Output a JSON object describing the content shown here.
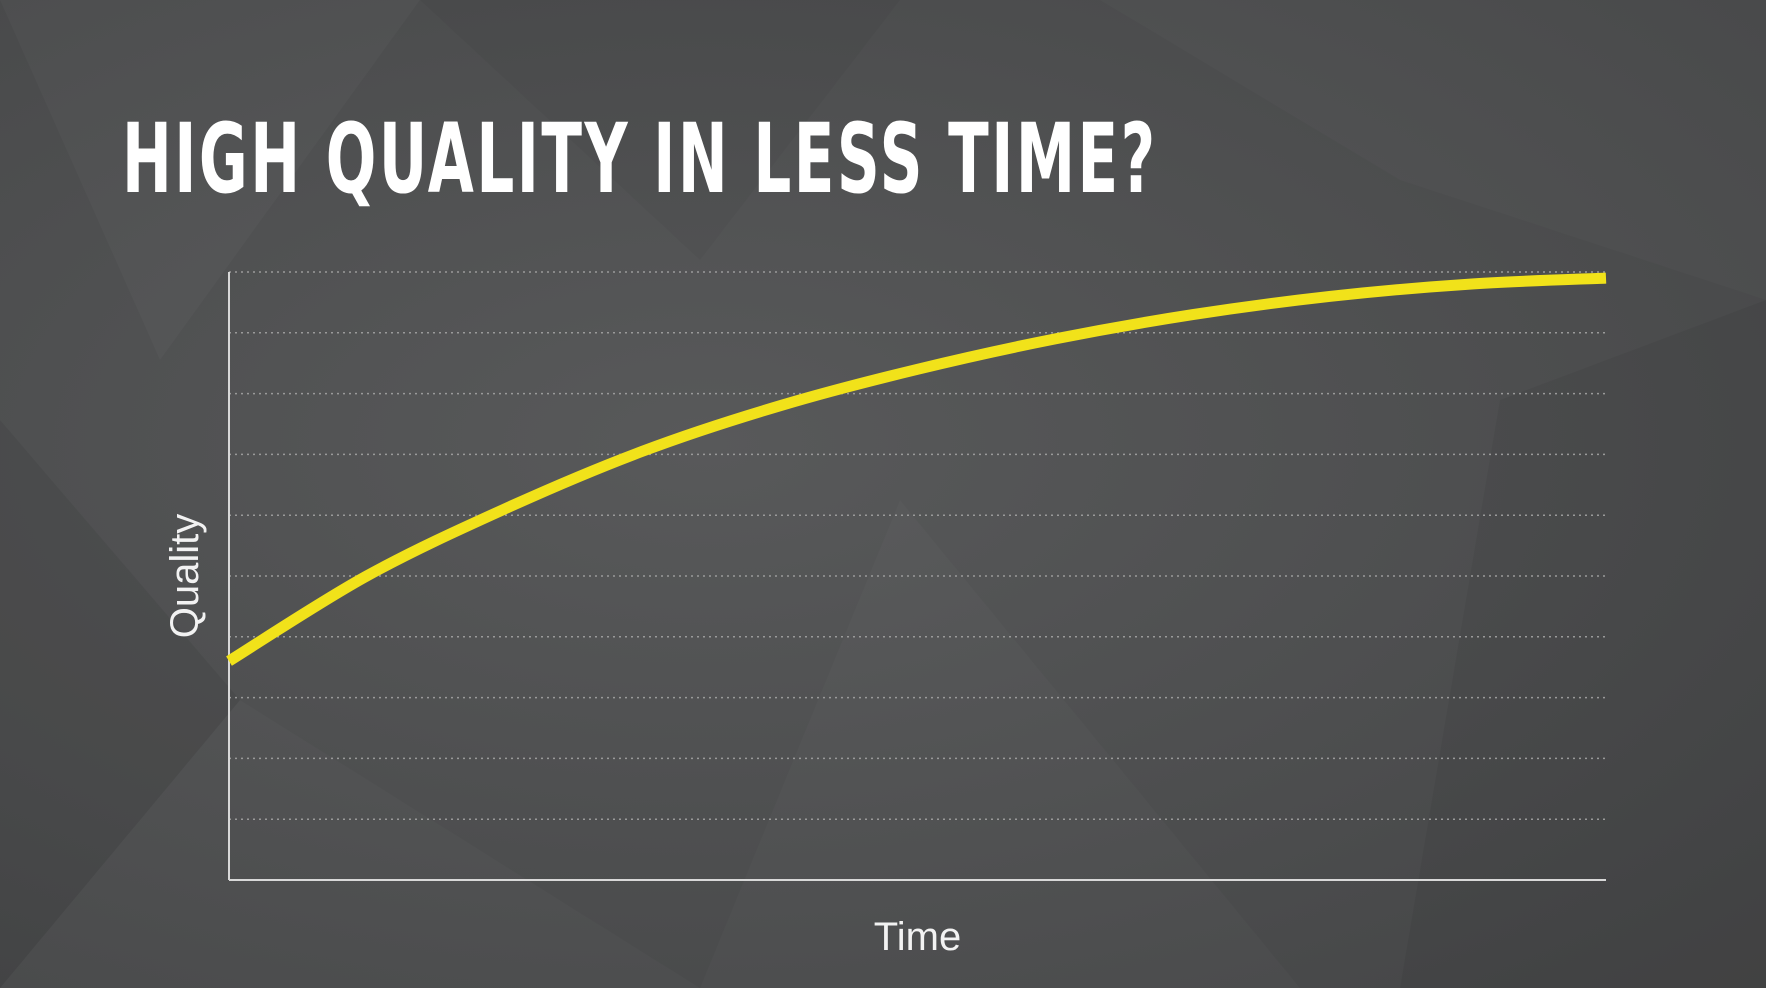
{
  "slide": {
    "title": "HIGH QUALITY IN LESS TIME?"
  },
  "colors": {
    "background": "#4b4c4d",
    "curve": "#f1e21a",
    "axis": "#d8d8d8",
    "grid": "#9a9a9a",
    "text": "#ffffff"
  },
  "chart_data": {
    "type": "line",
    "title": "HIGH QUALITY IN LESS TIME?",
    "xlabel": "Time",
    "ylabel": "Quality",
    "xlim": [
      0,
      10
    ],
    "ylim": [
      0,
      10
    ],
    "grid": true,
    "grid_style": "dotted",
    "legend": "none",
    "tick_labels": false,
    "series": [
      {
        "x": [
          0,
          1,
          2,
          3,
          4,
          5,
          6,
          7,
          8,
          9,
          10
        ],
        "values": [
          3.6,
          5.0,
          6.1,
          7.05,
          7.8,
          8.4,
          8.9,
          9.3,
          9.6,
          9.8,
          9.9
        ]
      }
    ]
  }
}
